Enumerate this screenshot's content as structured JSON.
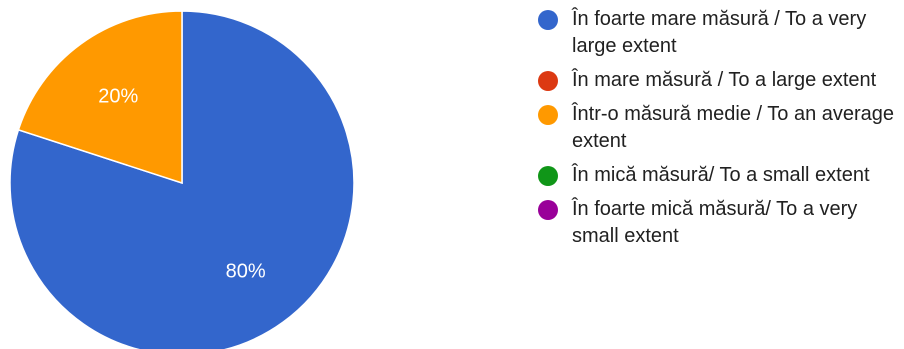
{
  "chart_data": {
    "type": "pie",
    "title": "",
    "slices": [
      {
        "label": "În foarte mare măsură / To a very large extent",
        "value": 80,
        "display": "80%",
        "color": "#3366cc"
      },
      {
        "label": "În mare măsură / To a large extent",
        "value": 0,
        "display": "",
        "color": "#dc3912"
      },
      {
        "label": "Într-o măsură medie / To an average extent",
        "value": 20,
        "display": "20%",
        "color": "#ff9900"
      },
      {
        "label": "În mică măsură/ To a small extent",
        "value": 0,
        "display": "",
        "color": "#109618"
      },
      {
        "label": "În foarte mică măsură/ To a very small extent",
        "value": 0,
        "display": "",
        "color": "#990099"
      }
    ],
    "legend_position": "right"
  }
}
